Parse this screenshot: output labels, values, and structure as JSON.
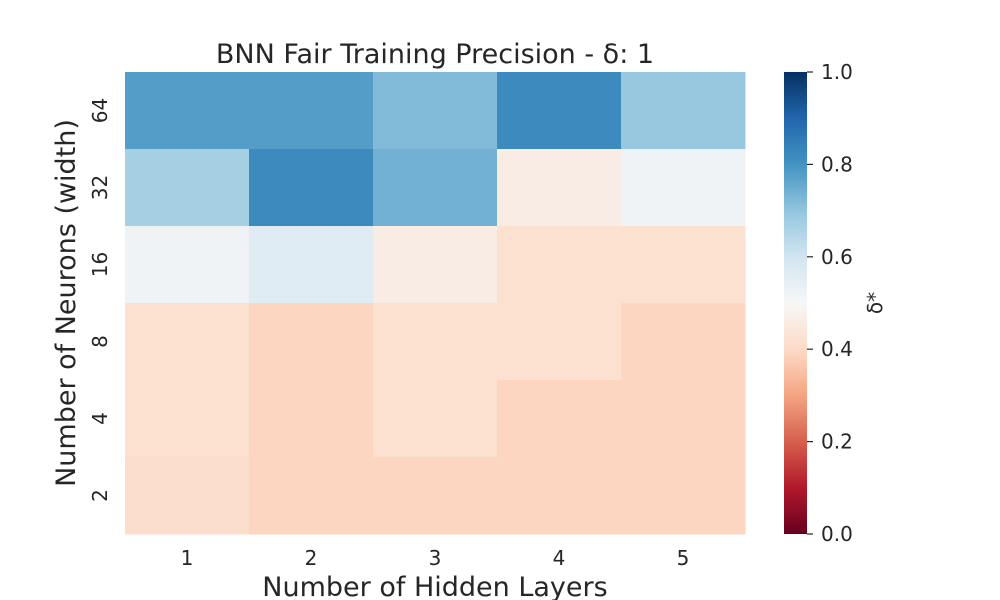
{
  "chart_data": {
    "type": "heatmap",
    "title": "BNN Fair Training Precision - δ: 1",
    "xlabel": "Number of Hidden Layers",
    "ylabel": "Number of Neurons (width)",
    "x_categories": [
      "1",
      "2",
      "3",
      "4",
      "5"
    ],
    "y_categories": [
      "64",
      "32",
      "16",
      "8",
      "4",
      "2"
    ],
    "values": [
      [
        0.78,
        0.78,
        0.72,
        0.82,
        0.69
      ],
      [
        0.67,
        0.82,
        0.74,
        0.46,
        0.52
      ],
      [
        0.52,
        0.56,
        0.46,
        0.42,
        0.42
      ],
      [
        0.42,
        0.39,
        0.42,
        0.42,
        0.39
      ],
      [
        0.42,
        0.39,
        0.42,
        0.39,
        0.39
      ],
      [
        0.41,
        0.39,
        0.39,
        0.39,
        0.39
      ]
    ],
    "colorbar": {
      "label": "δ*",
      "range": [
        0.0,
        1.0
      ],
      "ticks": [
        "0.0",
        "0.2",
        "0.4",
        "0.6",
        "0.8",
        "1.0"
      ],
      "colormap": "RdBu"
    }
  }
}
